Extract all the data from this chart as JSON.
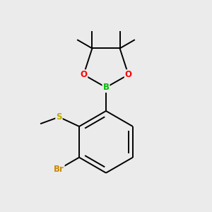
{
  "background_color": "#ebebeb",
  "atom_colors": {
    "C": "#000000",
    "B": "#00bb00",
    "O": "#ff0000",
    "S": "#bbaa00",
    "Br": "#cc8800"
  },
  "figsize": [
    3.0,
    3.0
  ],
  "dpi": 100,
  "lw": 1.4,
  "font_size": 8.5
}
